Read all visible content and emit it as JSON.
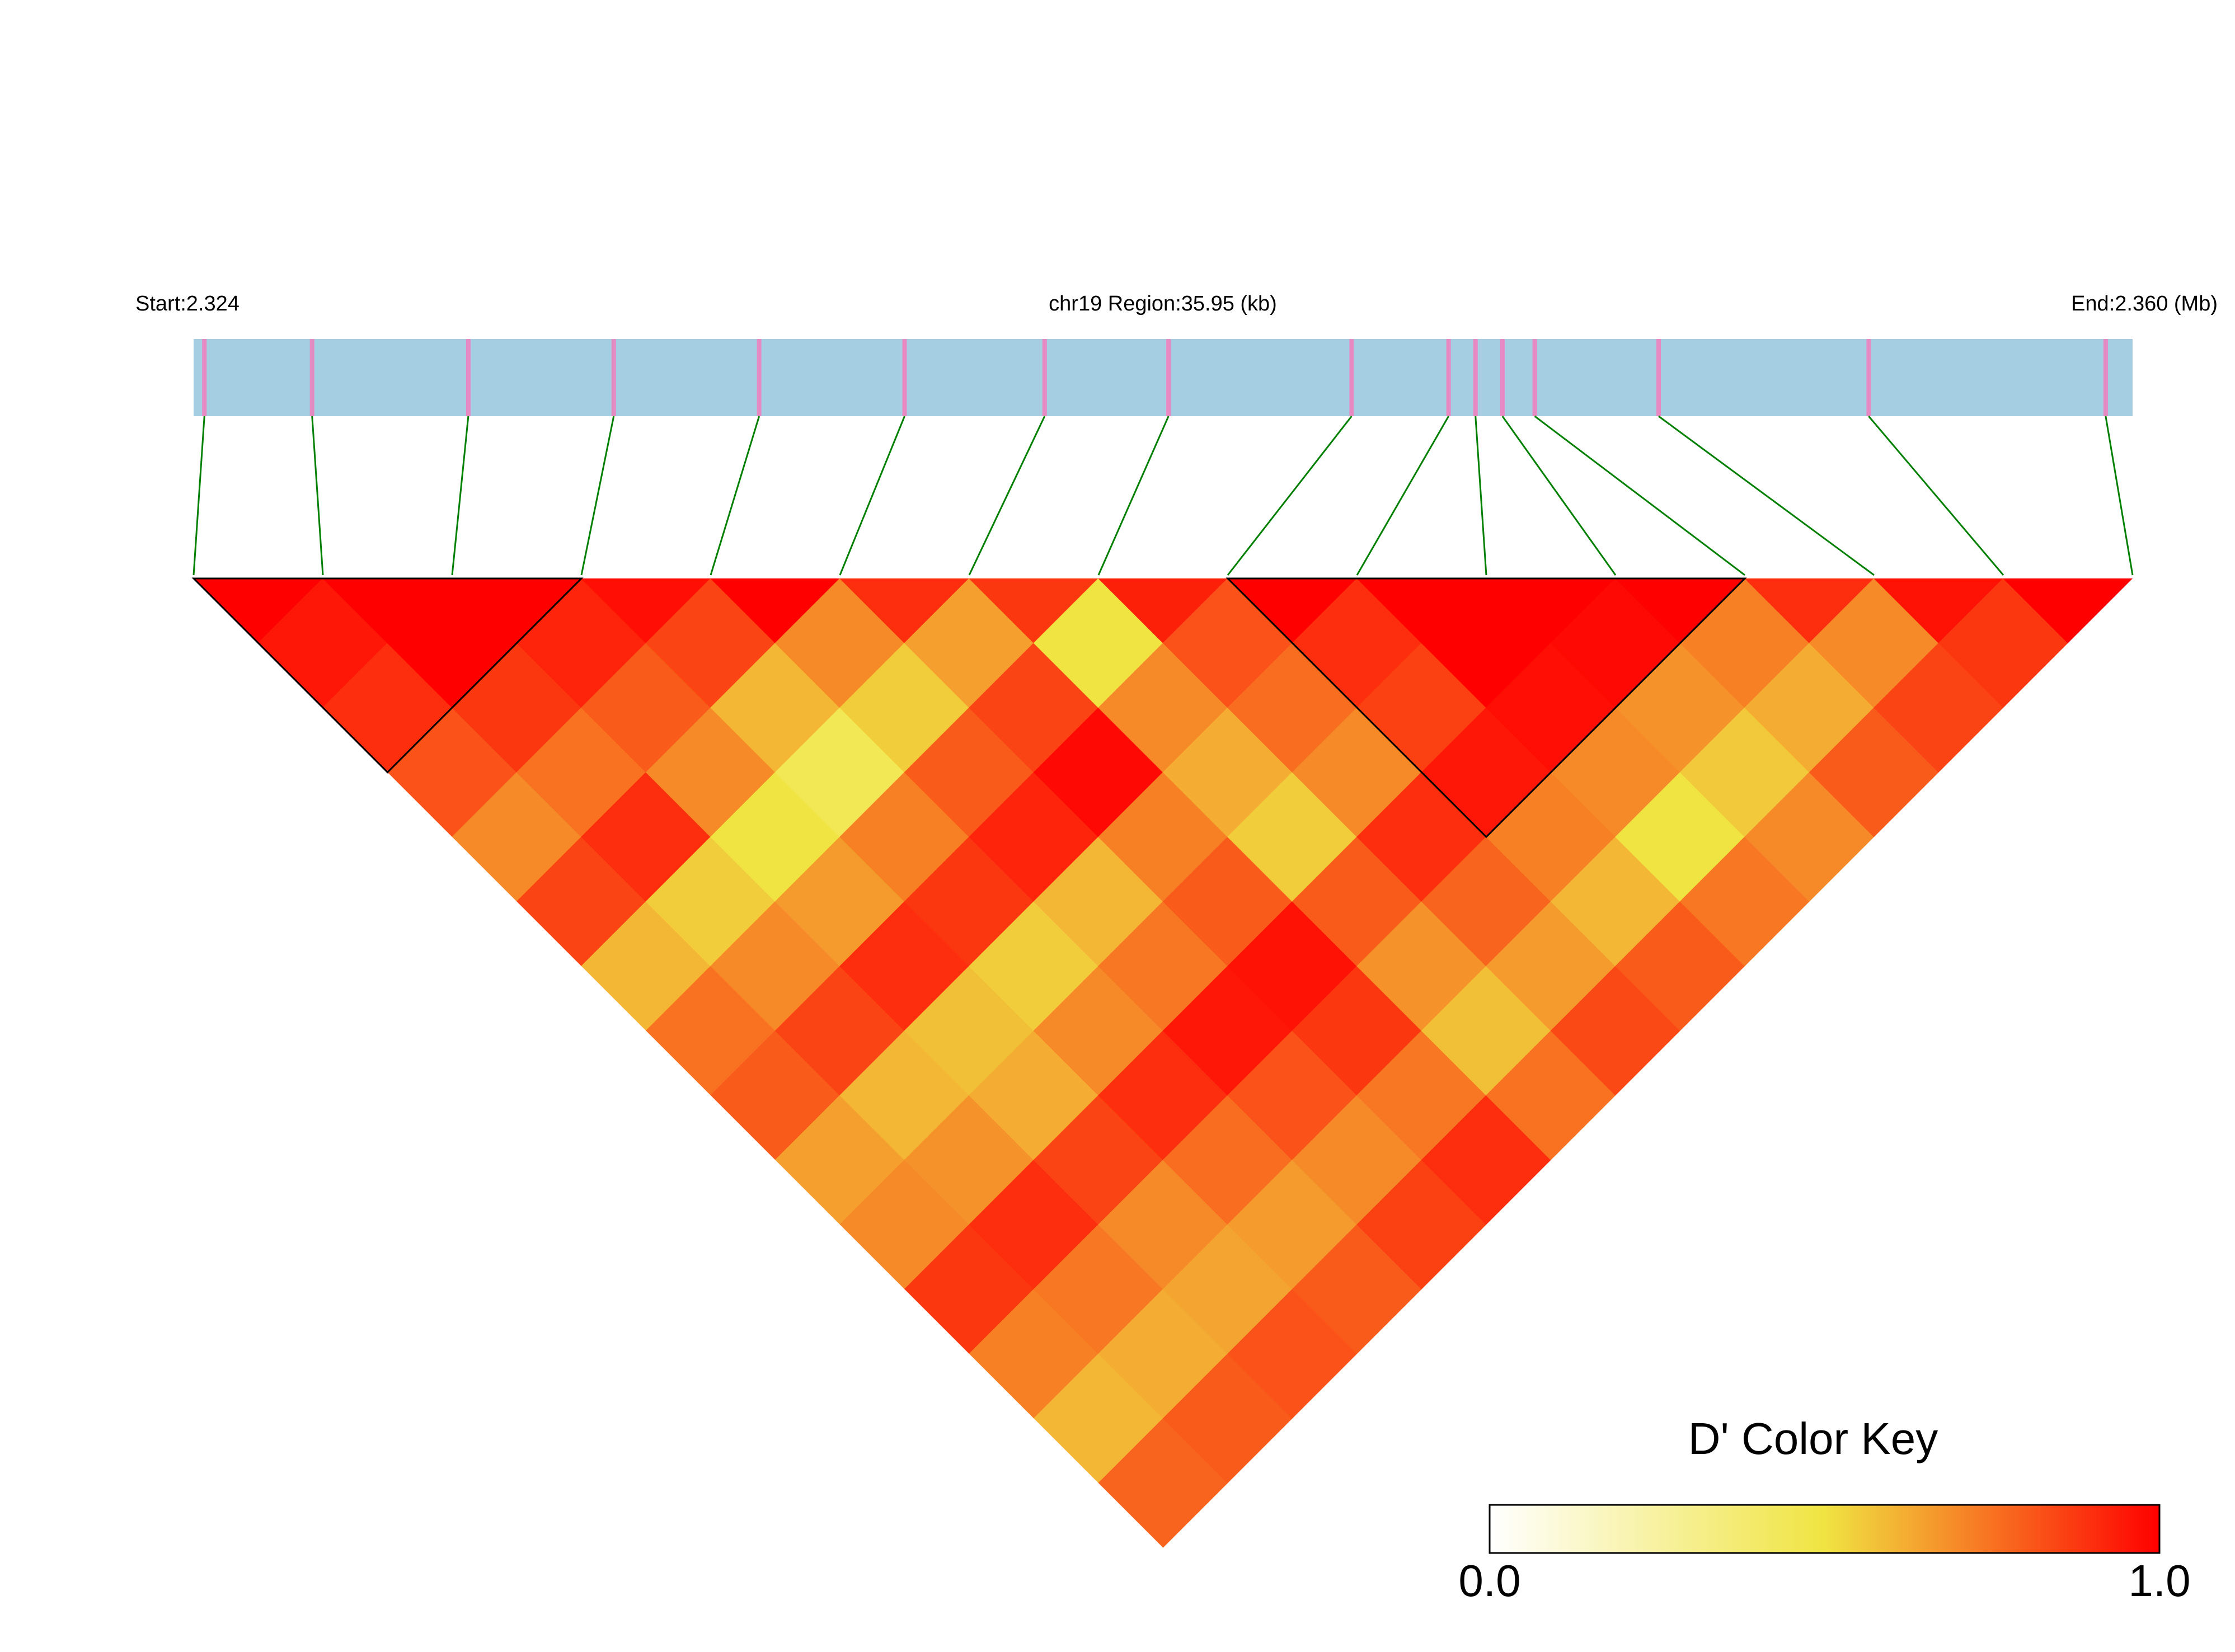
{
  "chart_data": {
    "type": "ld_heatmap",
    "start_label": "Start:2.324",
    "region_label": "chr19 Region:35.95 (kb)",
    "end_label": "End:2.360 (Mb)",
    "legend_title": "D' Color Key",
    "xlim": [
      2.324,
      2.36
    ],
    "x": [
      2.3242,
      2.3262,
      2.3291,
      2.3318,
      2.3345,
      2.3372,
      2.3398,
      2.3421,
      2.3455,
      2.3473,
      2.3478,
      2.3483,
      2.3489,
      2.3512,
      2.3551,
      2.3595
    ],
    "values": [
      [
        1,
        0.95,
        0.9,
        0.82,
        0.7,
        0.85,
        0.6,
        0.75,
        0.8,
        0.65,
        0.7,
        0.88,
        0.72,
        0.6,
        0.78
      ],
      [
        1,
        1,
        0.88,
        0.75,
        0.9,
        0.55,
        0.7,
        0.85,
        0.6,
        0.68,
        0.9,
        0.74,
        0.62,
        0.8
      ],
      [
        1,
        0.92,
        0.8,
        0.7,
        0.5,
        0.66,
        0.9,
        0.58,
        0.62,
        0.85,
        0.7,
        0.64,
        0.82
      ],
      [
        0.97,
        0.85,
        0.6,
        0.45,
        0.72,
        0.88,
        0.55,
        0.7,
        0.9,
        0.76,
        0.66,
        0.8
      ],
      [
        1,
        0.7,
        0.55,
        0.8,
        0.92,
        0.6,
        0.74,
        0.95,
        0.82,
        0.7,
        0.86
      ],
      [
        0.9,
        0.65,
        0.85,
        0.98,
        0.72,
        0.8,
        0.96,
        0.88,
        0.74,
        0.9
      ],
      [
        0.88,
        0.5,
        0.7,
        0.62,
        0.55,
        0.8,
        0.68,
        0.58,
        0.75
      ],
      [
        0.93,
        0.82,
        0.76,
        0.7,
        0.9,
        0.78,
        0.66,
        0.84
      ],
      [
        1,
        0.9,
        0.86,
        0.95,
        0.72,
        0.6,
        0.8
      ],
      [
        1,
        1,
        0.97,
        0.7,
        0.5,
        0.74
      ],
      [
        1,
        0.98,
        0.68,
        0.56,
        0.7
      ],
      [
        1,
        0.72,
        0.62,
        0.8
      ],
      [
        0.9,
        0.7,
        0.85
      ],
      [
        0.96,
        0.88
      ],
      [
        1
      ]
    ],
    "blocks": [
      [
        0,
        3
      ],
      [
        8,
        12
      ]
    ],
    "colorscale": [
      "#ffffff",
      "#f0e442",
      "#ff0000"
    ],
    "track_color": "#a6cee3",
    "snp_color": "#e78ac3",
    "connector_color": "#008000",
    "key_ticks": [
      {
        "value": 0,
        "label": "0.0"
      },
      {
        "value": 1,
        "label": "1.0"
      }
    ]
  }
}
